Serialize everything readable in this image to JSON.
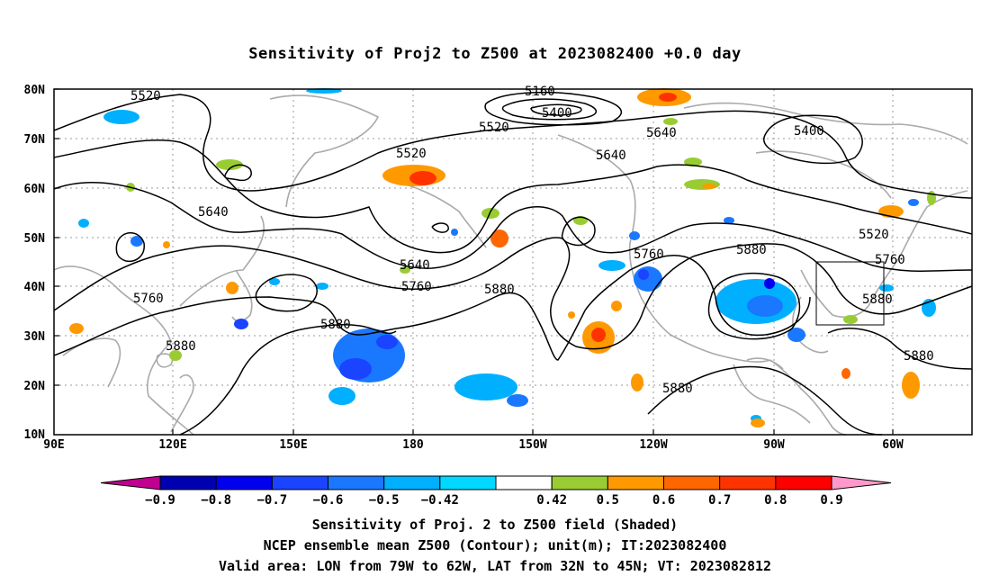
{
  "title": "Sensitivity of Proj2 to Z500 at 2023082400 +0.0 day",
  "lat_labels": [
    "80N",
    "70N",
    "60N",
    "50N",
    "40N",
    "30N",
    "20N",
    "10N"
  ],
  "lon_labels": [
    "90E",
    "120E",
    "150E",
    "180",
    "150W",
    "120W",
    "90W",
    "60W"
  ],
  "contour_labels": [
    "5520",
    "5160",
    "5400",
    "5520",
    "5400",
    "5520",
    "5640",
    "5640",
    "5640",
    "5520",
    "5640",
    "5760",
    "5760",
    "5880",
    "5880",
    "5760",
    "5760",
    "5880",
    "5880",
    "5880",
    "5880",
    "5880"
  ],
  "colorbar": {
    "labels": [
      "-0.9",
      "-0.8",
      "-0.7",
      "-0.6",
      "-0.5",
      "-0.42",
      "0.42",
      "0.5",
      "0.6",
      "0.7",
      "0.8",
      "0.9"
    ],
    "colors": [
      "#c0008f",
      "#0000b0",
      "#0000ee",
      "#1a44ff",
      "#1a78ff",
      "#00b0ff",
      "#00d8ff",
      "#ffffff",
      "#99cc33",
      "#ff9900",
      "#ff6600",
      "#ff3300",
      "#ff0000",
      "#ff99cc"
    ]
  },
  "footer": {
    "line1": "Sensitivity of Proj. 2 to Z500 field (Shaded)",
    "line2": "NCEP ensemble mean Z500 (Contour); unit(m); IT:2023082400",
    "line3": "Valid area: LON from 79W to 62W, LAT from 32N to 45N; VT: 2023082812"
  }
}
